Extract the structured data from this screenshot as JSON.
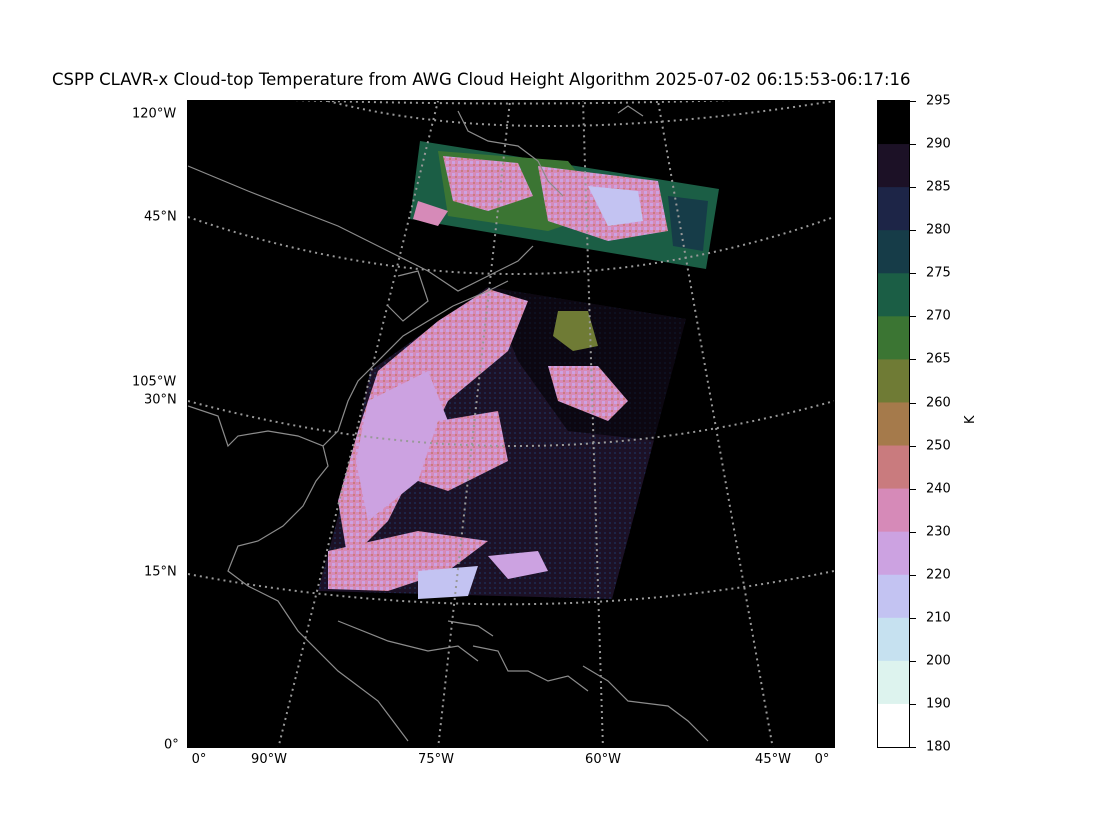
{
  "title": "CSPP CLAVR-x Cloud-top Temperature from AWG Cloud Height Algorithm 2025-07-02 06:15:53-06:17:16",
  "map": {
    "background": "#000000",
    "coastline_color": "#8c8c8c",
    "graticule_color": "#999999",
    "lat_labels": [
      {
        "text": "120°W"
      },
      {
        "text": "45°N"
      },
      {
        "text": "105°W"
      },
      {
        "text": "30°N"
      },
      {
        "text": "15°N"
      },
      {
        "text": "0°"
      }
    ],
    "lon_labels": [
      {
        "text": "0°"
      },
      {
        "text": "90°W"
      },
      {
        "text": "75°W"
      },
      {
        "text": "60°W"
      },
      {
        "text": "45°W"
      },
      {
        "text": "0°"
      }
    ]
  },
  "colorbar": {
    "unit": "K",
    "ticks": [
      "295",
      "290",
      "285",
      "280",
      "275",
      "270",
      "265",
      "260",
      "250",
      "240",
      "230",
      "220",
      "210",
      "200",
      "190",
      "180"
    ],
    "bins": [
      {
        "from": 290,
        "to": 295,
        "color": "#000000"
      },
      {
        "from": 285,
        "to": 290,
        "color": "#1c1126"
      },
      {
        "from": 280,
        "to": 285,
        "color": "#1d2547"
      },
      {
        "from": 275,
        "to": 280,
        "color": "#163c48"
      },
      {
        "from": 270,
        "to": 275,
        "color": "#1b5e45"
      },
      {
        "from": 265,
        "to": 270,
        "color": "#3b7533"
      },
      {
        "from": 260,
        "to": 265,
        "color": "#6f7b35"
      },
      {
        "from": 250,
        "to": 260,
        "color": "#a57a4b"
      },
      {
        "from": 240,
        "to": 250,
        "color": "#c97b7e"
      },
      {
        "from": 230,
        "to": 240,
        "color": "#d68ab8"
      },
      {
        "from": 220,
        "to": 230,
        "color": "#cca2e1"
      },
      {
        "from": 210,
        "to": 220,
        "color": "#c3c3f2"
      },
      {
        "from": 200,
        "to": 210,
        "color": "#c6e1f0"
      },
      {
        "from": 190,
        "to": 200,
        "color": "#ddf3ee"
      },
      {
        "from": 180,
        "to": 190,
        "color": "#ffffff"
      }
    ]
  }
}
